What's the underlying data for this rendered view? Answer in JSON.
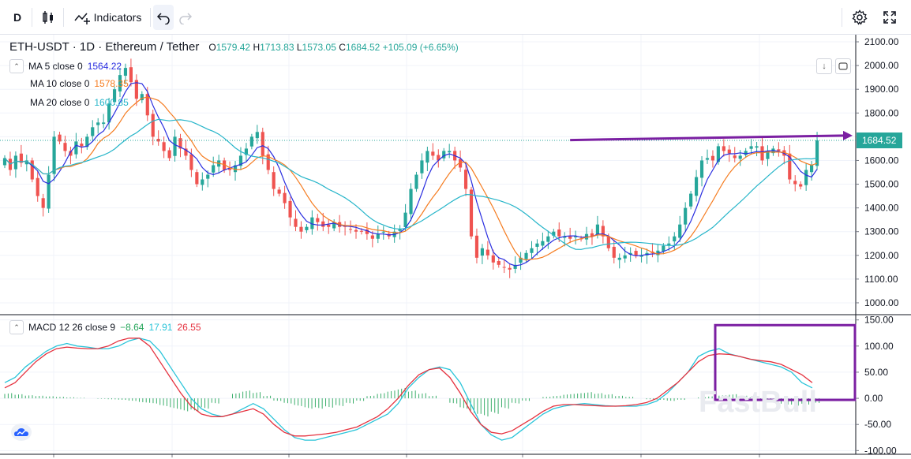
{
  "toolbar": {
    "interval": "D",
    "indicators_label": "Indicators"
  },
  "symbol": {
    "title": "ETH-USDT · 1D · Ethereum / Tether",
    "open_label": "O",
    "open": "1579.42",
    "high_label": "H",
    "high": "1713.83",
    "low_label": "L",
    "low": "1573.05",
    "close_label": "C",
    "close": "1684.52",
    "change": "+105.09 (+6.65%)"
  },
  "ma_legend": [
    {
      "label": "MA 5 close 0",
      "value": "1564.22",
      "color": "#2a2ee0"
    },
    {
      "label": "MA 10 close 0",
      "value": "1578.35",
      "color": "#f57c20"
    },
    {
      "label": "MA 20 close 0",
      "value": "1600.85",
      "color": "#26b5c9"
    }
  ],
  "macd_legend": {
    "label": "MACD 12 26 close 9",
    "histogram": "−8.64",
    "macd": "17.91",
    "signal": "26.55",
    "histogram_color": "#26a65b",
    "macd_color": "#29c4d9",
    "signal_color": "#e5323f"
  },
  "watermark": "FastBull",
  "colors": {
    "up": "#26a69a",
    "down": "#ef5350",
    "annotation": "#7b1fa2",
    "price_tag_bg": "#26a69a"
  },
  "chart_data": [
    {
      "type": "candlestick",
      "title": "ETH-USDT · 1D · Ethereum / Tether",
      "ylim": [
        950,
        2130
      ],
      "y_ticks": [
        "1000.00",
        "1100.00",
        "1200.00",
        "1300.00",
        "1400.00",
        "1500.00",
        "1600.00",
        "1700.00",
        "1800.00",
        "1900.00",
        "2000.00",
        "2100.00"
      ],
      "last_price": "1684.52",
      "closes": [
        1610,
        1560,
        1620,
        1590,
        1600,
        1520,
        1450,
        1400,
        1540,
        1700,
        1680,
        1640,
        1620,
        1680,
        1660,
        1700,
        1740,
        1760,
        1760,
        1840,
        1900,
        1960,
        1990,
        1930,
        1860,
        1880,
        1790,
        1700,
        1680,
        1640,
        1610,
        1700,
        1650,
        1620,
        1560,
        1500,
        1520,
        1540,
        1580,
        1600,
        1560,
        1560,
        1580,
        1620,
        1650,
        1700,
        1720,
        1620,
        1560,
        1480,
        1460,
        1420,
        1360,
        1320,
        1300,
        1320,
        1360,
        1340,
        1320,
        1320,
        1340,
        1320,
        1320,
        1310,
        1300,
        1300,
        1290,
        1270,
        1290,
        1300,
        1280,
        1300,
        1310,
        1380,
        1480,
        1540,
        1600,
        1640,
        1620,
        1600,
        1640,
        1640,
        1600,
        1570,
        1480,
        1280,
        1190,
        1230,
        1200,
        1170,
        1160,
        1150,
        1140,
        1160,
        1190,
        1210,
        1230,
        1250,
        1260,
        1280,
        1300,
        1280,
        1280,
        1270,
        1280,
        1270,
        1290,
        1280,
        1330,
        1280,
        1230,
        1190,
        1190,
        1200,
        1210,
        1200,
        1200,
        1210,
        1210,
        1220,
        1240,
        1250,
        1280,
        1330,
        1400,
        1460,
        1530,
        1600,
        1610,
        1600,
        1660,
        1640,
        1630,
        1610,
        1620,
        1640,
        1660,
        1660,
        1600,
        1640,
        1650,
        1640,
        1620,
        1520,
        1500,
        1490,
        1560,
        1580,
        1684.52
      ],
      "annotation_line": {
        "from_x": 103,
        "to_x": 152,
        "from_y": 1686,
        "to_y": 1705
      }
    },
    {
      "type": "line",
      "title": "MACD 12 26 close 9",
      "ylim": [
        -107,
        157
      ],
      "y_ticks": [
        "150.00",
        "100.00",
        "50.00",
        "0.00",
        "-50.00",
        "-100.00"
      ],
      "series": [
        {
          "name": "MACD",
          "values": [
            30,
            40,
            60,
            75,
            90,
            100,
            105,
            100,
            98,
            95,
            95,
            100,
            110,
            115,
            110,
            90,
            60,
            30,
            0,
            -20,
            -30,
            -35,
            -30,
            -20,
            -10,
            -20,
            -40,
            -60,
            -75,
            -80,
            -80,
            -75,
            -70,
            -65,
            -60,
            -50,
            -40,
            -30,
            -10,
            20,
            40,
            55,
            60,
            55,
            30,
            -10,
            -50,
            -70,
            -80,
            -75,
            -60,
            -45,
            -30,
            -20,
            -15,
            -12,
            -10,
            -12,
            -14,
            -15,
            -15,
            -15,
            -12,
            -5,
            10,
            30,
            50,
            80,
            90,
            95,
            85,
            80,
            75,
            70,
            65,
            60,
            50,
            30,
            20
          ]
        },
        {
          "name": "Signal",
          "values": [
            20,
            30,
            50,
            70,
            85,
            95,
            98,
            96,
            95,
            95,
            100,
            110,
            115,
            115,
            100,
            70,
            40,
            10,
            -15,
            -30,
            -35,
            -35,
            -30,
            -25,
            -20,
            -30,
            -50,
            -65,
            -72,
            -72,
            -70,
            -68,
            -65,
            -60,
            -55,
            -45,
            -35,
            -20,
            0,
            25,
            45,
            55,
            58,
            40,
            10,
            -25,
            -50,
            -65,
            -68,
            -62,
            -50,
            -38,
            -25,
            -15,
            -12,
            -12,
            -13,
            -14,
            -15,
            -15,
            -14,
            -12,
            -8,
            0,
            15,
            30,
            50,
            70,
            82,
            85,
            84,
            80,
            75,
            72,
            70,
            65,
            55,
            45,
            30
          ]
        }
      ],
      "histogram": [
        10,
        8,
        6,
        5,
        4,
        3,
        2,
        1,
        0,
        -1,
        -2,
        -3,
        -5,
        -8,
        -10,
        -15,
        -20,
        -25,
        -25,
        -20,
        -10,
        0,
        10,
        15,
        12,
        5,
        -5,
        -10,
        -15,
        -20,
        -20,
        -18,
        -15,
        -10,
        -5,
        5,
        10,
        15,
        20,
        15,
        10,
        5,
        0,
        -10,
        -20,
        -30,
        -35,
        -30,
        -20,
        -10,
        -5,
        0,
        3,
        5,
        8,
        10,
        12,
        10,
        8,
        5,
        3,
        0,
        -2,
        -3,
        -5,
        -3,
        0,
        2,
        4,
        6,
        8,
        5,
        2,
        -3,
        -8,
        -12,
        -14,
        -12,
        -9
      ]
    }
  ]
}
